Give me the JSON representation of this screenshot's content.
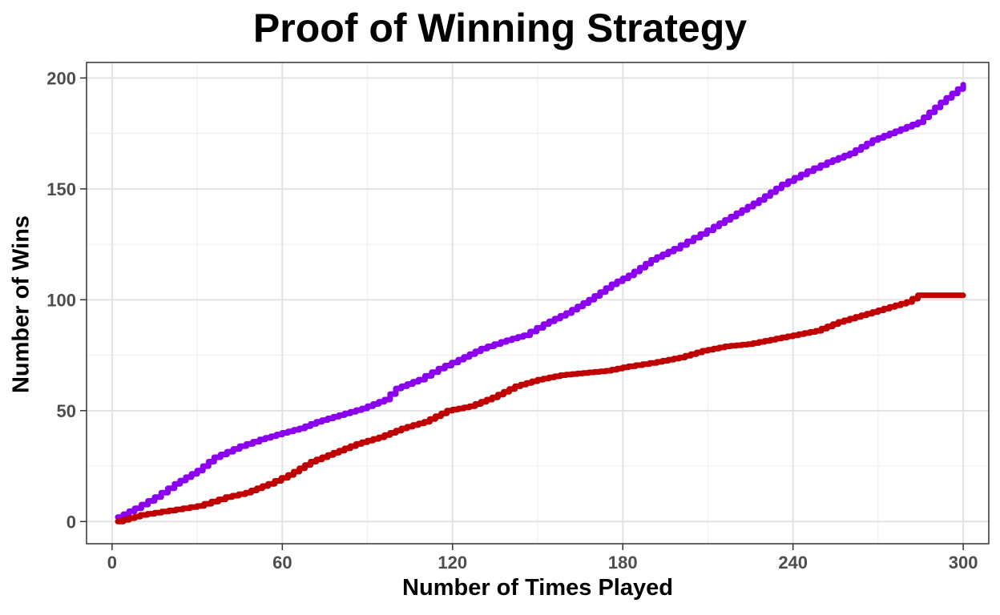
{
  "chart_data": {
    "type": "line",
    "title": "Proof of Winning Strategy",
    "xlabel": "Number of Times Played",
    "ylabel": "Number of Wins",
    "xlim": [
      -9,
      309
    ],
    "ylim": [
      -10,
      207
    ],
    "x_ticks": [
      0,
      60,
      120,
      180,
      240,
      300
    ],
    "y_ticks": [
      0,
      50,
      100,
      150,
      200
    ],
    "x_tick_labels": [
      "0",
      "60",
      "120",
      "180",
      "240",
      "300"
    ],
    "y_tick_labels": [
      "0",
      "50",
      "100",
      "150",
      "200"
    ],
    "grid": true,
    "legend": "none",
    "series": [
      {
        "color": "#8b00ee",
        "x": [
          2,
          8,
          15,
          22,
          30,
          36,
          45,
          52,
          60,
          66,
          72,
          80,
          88,
          96,
          100,
          108,
          115,
          122,
          130,
          137,
          145,
          152,
          160,
          168,
          176,
          182,
          190,
          198,
          205,
          212,
          220,
          228,
          236,
          245,
          252,
          260,
          268,
          276,
          284,
          292,
          300
        ],
        "y": [
          2,
          6,
          11,
          17,
          23,
          29,
          34,
          37,
          40,
          42,
          45,
          48,
          51,
          55,
          60,
          64,
          69,
          73,
          78,
          81,
          84,
          89,
          94,
          100,
          107,
          111,
          118,
          123,
          128,
          133,
          139,
          145,
          152,
          158,
          162,
          166,
          172,
          176,
          180,
          189,
          197
        ]
      },
      {
        "color": "#c00000",
        "x": [
          2,
          10,
          20,
          30,
          40,
          47,
          55,
          62,
          70,
          78,
          86,
          94,
          102,
          110,
          118,
          126,
          134,
          142,
          150,
          158,
          166,
          174,
          182,
          192,
          200,
          208,
          216,
          224,
          232,
          240,
          248,
          256,
          264,
          272,
          280,
          284,
          292,
          300
        ],
        "y": [
          0,
          3,
          5,
          7,
          11,
          13,
          17,
          21,
          27,
          31,
          35,
          38,
          42,
          45,
          50,
          52,
          56,
          61,
          64,
          66,
          67,
          68,
          70,
          72,
          74,
          77,
          79,
          80,
          82,
          84,
          86,
          90,
          93,
          96,
          99,
          102,
          102,
          102
        ]
      }
    ]
  }
}
